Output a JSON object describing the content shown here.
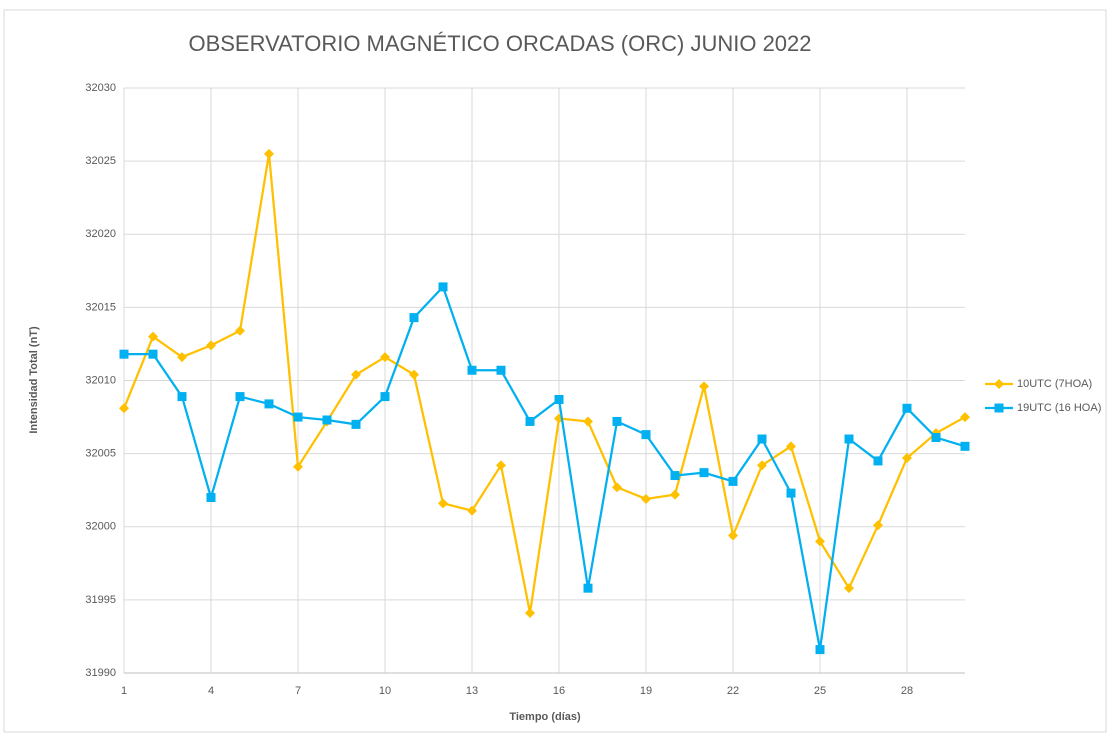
{
  "chart_data": {
    "type": "line",
    "title": "OBSERVATORIO MAGNÉTICO ORCADAS (ORC)  JUNIO 2022",
    "x_label": "Tiempo (días)",
    "y_label": "Intensidad Total (nT)",
    "x": [
      1,
      2,
      3,
      4,
      5,
      6,
      7,
      8,
      9,
      10,
      11,
      12,
      13,
      14,
      15,
      16,
      17,
      18,
      19,
      20,
      21,
      22,
      23,
      24,
      25,
      26,
      27,
      28,
      29,
      30
    ],
    "xlim": [
      1,
      30
    ],
    "xticks": [
      1,
      4,
      7,
      10,
      13,
      16,
      19,
      22,
      25,
      28
    ],
    "ylim": [
      31990,
      32030
    ],
    "yticks": [
      31990,
      31995,
      32000,
      32005,
      32010,
      32015,
      32020,
      32025,
      32030
    ],
    "grid": true,
    "legend": "right",
    "series": [
      {
        "name": "10UTC (7HOA)",
        "color": "#ffc000",
        "marker": "diamond",
        "values": [
          32008.1,
          32013.0,
          32011.6,
          32012.4,
          32013.4,
          32025.5,
          32004.1,
          32007.2,
          32010.4,
          32011.6,
          32010.4,
          32001.6,
          32001.1,
          32004.2,
          31994.1,
          32007.4,
          32007.2,
          32002.7,
          32001.9,
          32002.2,
          32009.6,
          31999.4,
          32004.2,
          32005.5,
          31999.0,
          31995.8,
          32000.1,
          32004.7,
          32006.4,
          32007.5
        ]
      },
      {
        "name": "19UTC (16 HOA)",
        "color": "#00b0f0",
        "marker": "square",
        "values": [
          32011.8,
          32011.8,
          32008.9,
          32002.0,
          32008.9,
          32008.4,
          32007.5,
          32007.3,
          32007.0,
          32008.9,
          32014.3,
          32016.4,
          32010.7,
          32010.7,
          32007.2,
          32008.7,
          31995.8,
          32007.2,
          32006.3,
          32003.5,
          32003.7,
          32003.1,
          32006.0,
          32002.3,
          31991.6,
          32006.0,
          32004.5,
          32008.1,
          32006.1,
          32005.5
        ]
      }
    ]
  }
}
